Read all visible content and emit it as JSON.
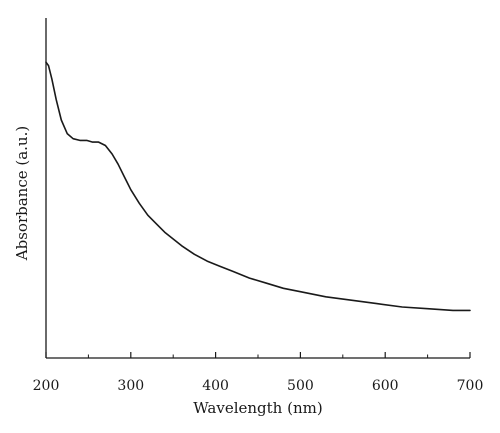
{
  "chart_data": {
    "type": "line",
    "title": "",
    "xlabel": "Wavelength (nm)",
    "ylabel": "Absorbance (a.u.)",
    "xlim": [
      200,
      700
    ],
    "ylim": [
      0,
      1
    ],
    "xticks": [
      200,
      300,
      400,
      500,
      600,
      700
    ],
    "x_tick_labels": [
      "200",
      "300",
      "400",
      "500",
      "600",
      "700"
    ],
    "y_tick_labels_shown": false,
    "grid": false,
    "legend": "none",
    "line_color": "#1a1a1a",
    "series": [
      {
        "x": [
          200,
          203,
          207,
          212,
          218,
          225,
          232,
          240,
          248,
          255,
          262,
          270,
          278,
          285,
          292,
          300,
          310,
          320,
          330,
          340,
          350,
          360,
          375,
          390,
          405,
          420,
          440,
          460,
          480,
          500,
          530,
          560,
          590,
          620,
          650,
          680,
          700
        ],
        "y": [
          0.87,
          0.86,
          0.82,
          0.76,
          0.7,
          0.66,
          0.645,
          0.64,
          0.64,
          0.635,
          0.635,
          0.625,
          0.6,
          0.57,
          0.535,
          0.495,
          0.455,
          0.42,
          0.395,
          0.37,
          0.35,
          0.33,
          0.305,
          0.285,
          0.27,
          0.255,
          0.235,
          0.22,
          0.205,
          0.195,
          0.18,
          0.17,
          0.16,
          0.15,
          0.145,
          0.14,
          0.14
        ]
      }
    ]
  }
}
